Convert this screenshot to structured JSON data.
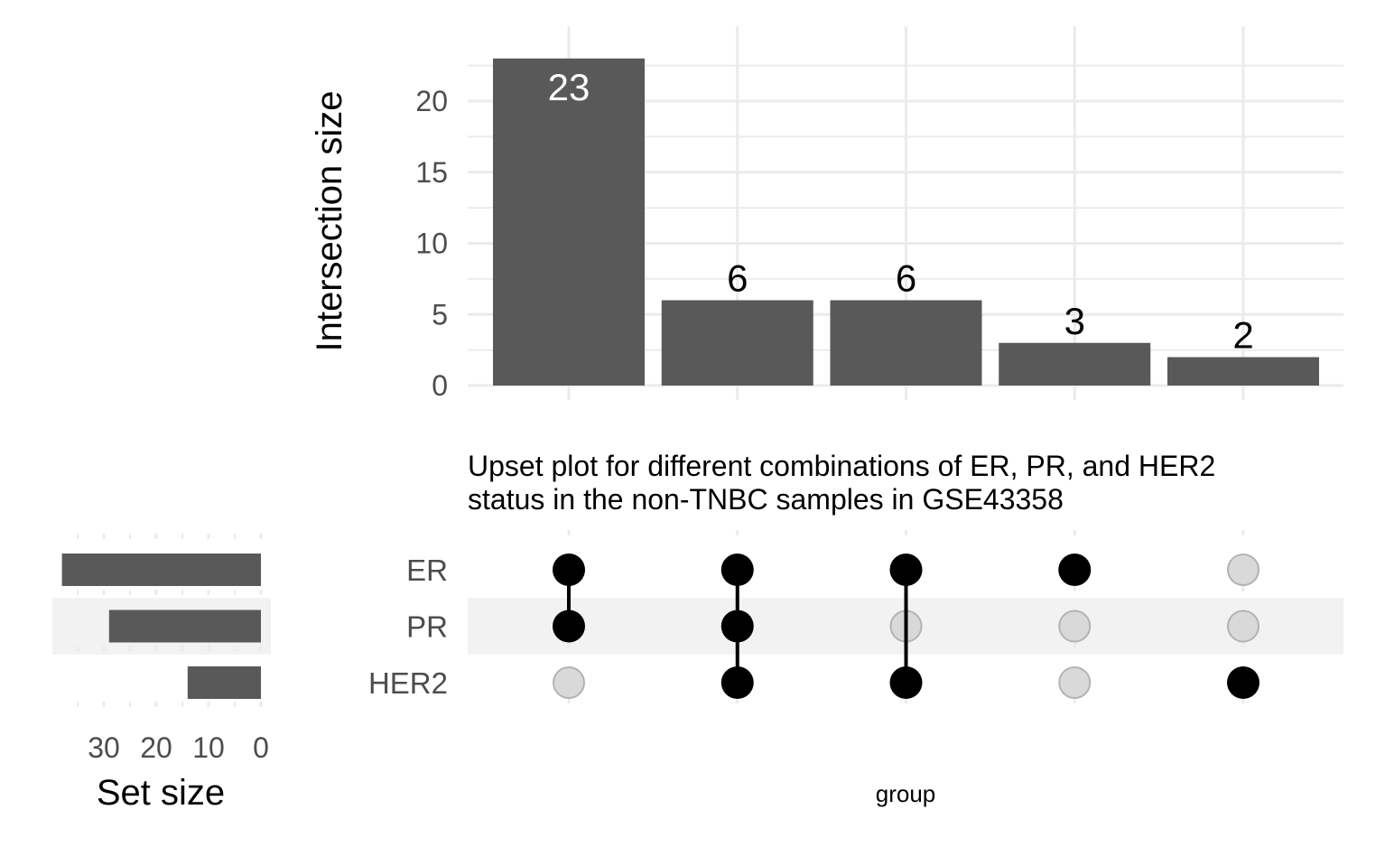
{
  "chart_data": {
    "type": "upset",
    "title": "Upset plot for different combinations of ER, PR, and HER2\nstatus in the non-TNBC samples in GSE43358",
    "title_lines": [
      "Upset plot for different combinations of ER, PR, and HER2",
      "status in the non-TNBC samples in GSE43358"
    ],
    "intersection_axis_label": "Intersection size",
    "intersection_ylim": [
      0,
      24
    ],
    "intersection_ticks": [
      0,
      5,
      10,
      15,
      20
    ],
    "set_size_axis_label": "Set size",
    "set_size_ticks": [
      30,
      20,
      10,
      0
    ],
    "set_size_xlim": [
      0,
      40
    ],
    "matrix_xlabel": "group",
    "sets": [
      "ER",
      "PR",
      "HER2"
    ],
    "set_sizes": [
      38,
      29,
      14
    ],
    "intersections": [
      {
        "size": 23,
        "members": [
          "ER",
          "PR"
        ]
      },
      {
        "size": 6,
        "members": [
          "ER",
          "PR",
          "HER2"
        ]
      },
      {
        "size": 6,
        "members": [
          "ER",
          "HER2"
        ]
      },
      {
        "size": 3,
        "members": [
          "ER"
        ]
      },
      {
        "size": 2,
        "members": [
          "HER2"
        ]
      }
    ],
    "colors": {
      "bar": "#595959",
      "dot_active": "#000000",
      "dot_inactive": "#d9d9d9",
      "stripe": "#f2f2f2",
      "grid": "#ebebeb"
    }
  }
}
